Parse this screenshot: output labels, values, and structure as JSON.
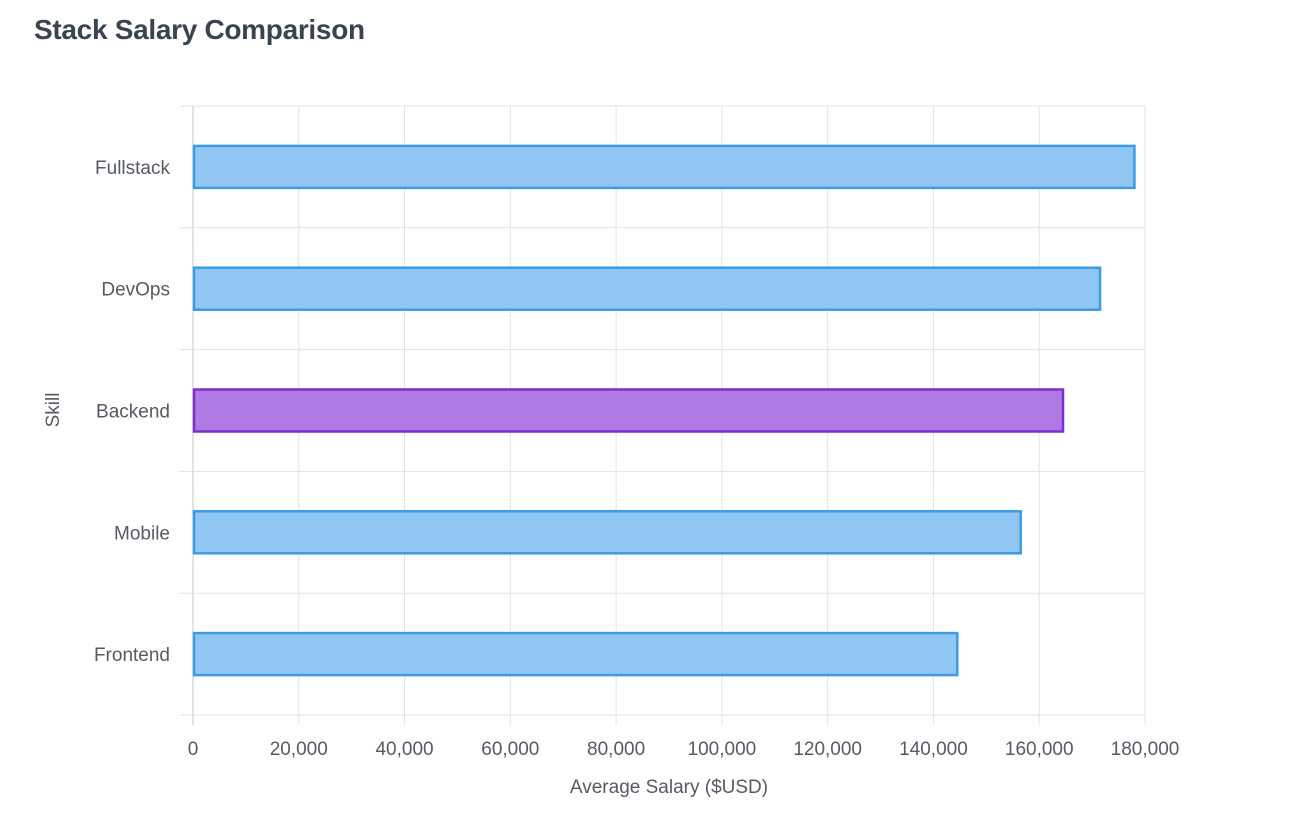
{
  "title": "Stack Salary Comparison",
  "chart_data": {
    "type": "bar",
    "orientation": "horizontal",
    "title": "Stack Salary Comparison",
    "xlabel": "Average Salary ($USD)",
    "ylabel": "Skill",
    "xlim": [
      0,
      180000
    ],
    "x_ticks": [
      "0",
      "20,000",
      "40,000",
      "60,000",
      "80,000",
      "100,000",
      "120,000",
      "140,000",
      "160,000",
      "180,000"
    ],
    "grid": true,
    "categories": [
      "Fullstack",
      "DevOps",
      "Backend",
      "Mobile",
      "Frontend"
    ],
    "values": [
      178000,
      171500,
      164500,
      156500,
      144500
    ],
    "highlighted": "Backend",
    "colors": {
      "default_fill": "#91c6f2",
      "default_stroke": "#3a9ce6",
      "highlight_fill": "#b07ae4",
      "highlight_stroke": "#7a2fd0",
      "grid": "#e3e3e3",
      "text": "#555b63"
    }
  }
}
